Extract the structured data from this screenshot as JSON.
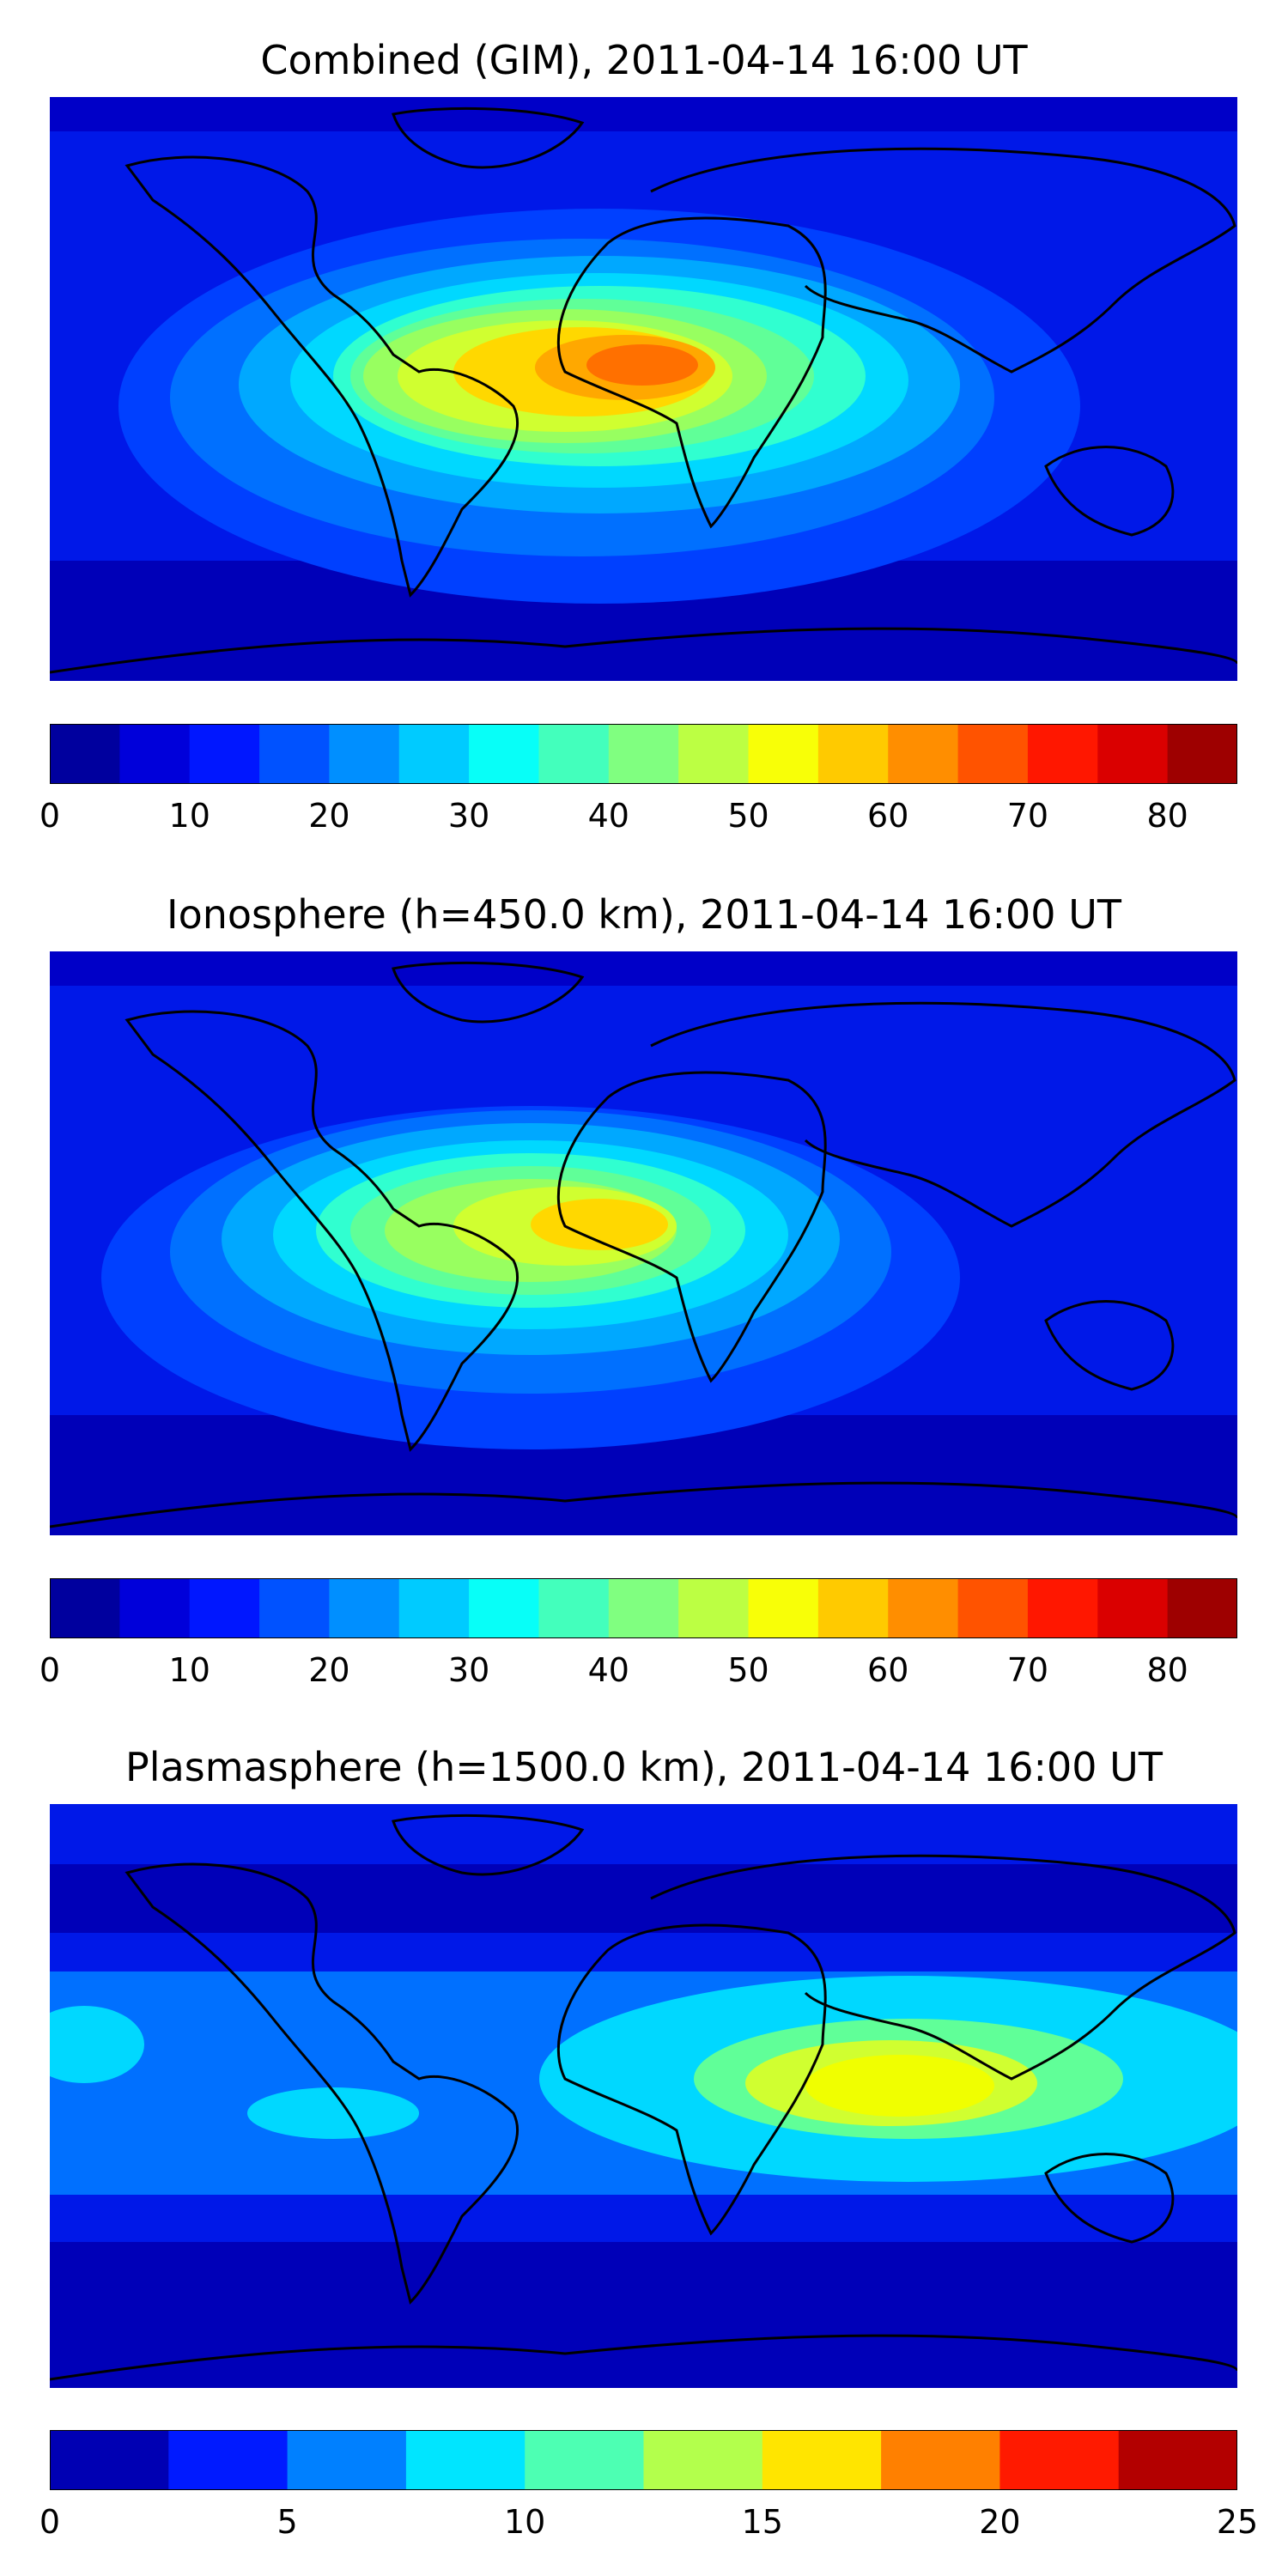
{
  "panels": [
    {
      "title": "Combined (GIM), 2011-04-14 16:00 UT",
      "colorbar": {
        "min": 0,
        "max": 85,
        "step": 5,
        "tick_values": [
          0,
          10,
          20,
          30,
          40,
          50,
          60,
          70,
          80
        ],
        "tick_labels": [
          "0",
          "10",
          "20",
          "30",
          "40",
          "50",
          "60",
          "70",
          "80"
        ]
      }
    },
    {
      "title": "Ionosphere  (h=450.0 km), 2011-04-14 16:00 UT",
      "colorbar": {
        "min": 0,
        "max": 85,
        "step": 5,
        "tick_values": [
          0,
          10,
          20,
          30,
          40,
          50,
          60,
          70,
          80
        ],
        "tick_labels": [
          "0",
          "10",
          "20",
          "30",
          "40",
          "50",
          "60",
          "70",
          "80"
        ]
      }
    },
    {
      "title": "Plasmasphere (h=1500.0 km), 2011-04-14 16:00 UT",
      "colorbar": {
        "min": 0,
        "max": 25,
        "step": 2.5,
        "tick_values": [
          0,
          5,
          10,
          15,
          20,
          25
        ],
        "tick_labels": [
          "0",
          "5",
          "10",
          "15",
          "20",
          "25"
        ]
      }
    }
  ],
  "colormap": "jet",
  "colors": {
    "ocean_base": "#0018e8",
    "coastline": "#000000"
  }
}
